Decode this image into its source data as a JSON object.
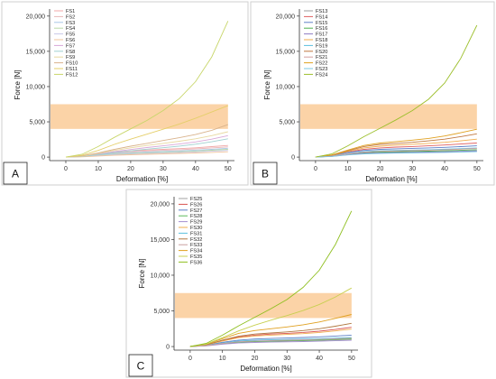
{
  "chart_data": [
    {
      "type": "line",
      "panel_label": "A",
      "xlabel": "Deformation [%]",
      "ylabel": "Force [N]",
      "xlim": [
        -5,
        52
      ],
      "ylim": [
        -500,
        21000
      ],
      "xticks": [
        0,
        10,
        20,
        30,
        40,
        50
      ],
      "xtick_labels": [
        "0",
        "10",
        "20",
        "30",
        "40",
        "50"
      ],
      "yticks": [
        0,
        5000,
        10000,
        15000,
        20000
      ],
      "ytick_labels": [
        "0",
        "5,000",
        "10,000",
        "15,000",
        "20,000"
      ],
      "shaded_band": {
        "y": [
          4000,
          7500
        ],
        "color": "#fbd3a7"
      },
      "grid": false,
      "legend_position": "top-left",
      "x": [
        0,
        5,
        10,
        15,
        20,
        25,
        30,
        35,
        40,
        45,
        50
      ],
      "series": [
        {
          "name": "FS1",
          "color": "#f0a8a8",
          "values": [
            0,
            150,
            450,
            700,
            880,
            1000,
            1100,
            1200,
            1320,
            1480,
            1650
          ]
        },
        {
          "name": "FS2",
          "color": "#e9b8b8",
          "values": [
            0,
            120,
            380,
            600,
            760,
            870,
            960,
            1050,
            1160,
            1300,
            1450
          ]
        },
        {
          "name": "FS3",
          "color": "#a9c8e8",
          "values": [
            0,
            100,
            300,
            480,
            620,
            720,
            800,
            880,
            980,
            1100,
            1250
          ]
        },
        {
          "name": "FS4",
          "color": "#b8d8a8",
          "values": [
            0,
            80,
            250,
            400,
            520,
            610,
            690,
            770,
            860,
            970,
            1100
          ]
        },
        {
          "name": "FS5",
          "color": "#c9c9e8",
          "values": [
            0,
            60,
            200,
            330,
            430,
            510,
            580,
            650,
            730,
            830,
            950
          ]
        },
        {
          "name": "FS6",
          "color": "#f2c49b",
          "values": [
            0,
            40,
            150,
            250,
            330,
            400,
            460,
            520,
            590,
            670,
            760
          ]
        },
        {
          "name": "FS7",
          "color": "#d8a8d8",
          "values": [
            0,
            110,
            420,
            780,
            1080,
            1350,
            1600,
            1850,
            2150,
            2550,
            3050
          ]
        },
        {
          "name": "FS8",
          "color": "#9fd0d0",
          "values": [
            0,
            90,
            350,
            650,
            900,
            1120,
            1330,
            1560,
            1830,
            2180,
            2600
          ]
        },
        {
          "name": "FS9",
          "color": "#e8d8a0",
          "values": [
            0,
            140,
            520,
            950,
            1320,
            1650,
            1950,
            2250,
            2600,
            3050,
            3600
          ]
        },
        {
          "name": "FS10",
          "color": "#d9b38c",
          "values": [
            0,
            180,
            600,
            1100,
            1550,
            1950,
            2350,
            2750,
            3200,
            3800,
            4600
          ]
        },
        {
          "name": "FS11",
          "color": "#e5cf6a",
          "values": [
            0,
            260,
            950,
            1800,
            2550,
            3250,
            3950,
            4700,
            5500,
            6400,
            7300
          ]
        },
        {
          "name": "FS12",
          "color": "#c8d66a",
          "values": [
            0,
            400,
            1500,
            2800,
            4000,
            5200,
            6600,
            8300,
            10700,
            14200,
            19300
          ]
        }
      ]
    },
    {
      "type": "line",
      "panel_label": "B",
      "xlabel": "Deformation [%]",
      "ylabel": "Force [N]",
      "xlim": [
        -5,
        52
      ],
      "ylim": [
        -500,
        21000
      ],
      "xticks": [
        0,
        10,
        20,
        30,
        40,
        50
      ],
      "xtick_labels": [
        "0",
        "10",
        "20",
        "30",
        "40",
        "50"
      ],
      "yticks": [
        0,
        5000,
        10000,
        15000,
        20000
      ],
      "ytick_labels": [
        "0",
        "5,000",
        "10,000",
        "15,000",
        "20,000"
      ],
      "shaded_band": {
        "y": [
          4000,
          7500
        ],
        "color": "#fbd3a7"
      },
      "grid": false,
      "legend_position": "top-left",
      "x": [
        0,
        5,
        10,
        15,
        20,
        25,
        30,
        35,
        40,
        45,
        50
      ],
      "series": [
        {
          "name": "FS13",
          "color": "#9e9e9e",
          "values": [
            0,
            150,
            420,
            560,
            620,
            650,
            680,
            700,
            730,
            760,
            800
          ]
        },
        {
          "name": "FS14",
          "color": "#e06060",
          "values": [
            0,
            200,
            700,
            1100,
            1300,
            1420,
            1500,
            1600,
            1720,
            1850,
            2000
          ]
        },
        {
          "name": "FS15",
          "color": "#6080c8",
          "values": [
            0,
            180,
            650,
            950,
            1100,
            1180,
            1240,
            1300,
            1380,
            1480,
            1600
          ]
        },
        {
          "name": "FS16",
          "color": "#4caf50",
          "values": [
            0,
            120,
            400,
            600,
            700,
            760,
            800,
            850,
            900,
            960,
            1050
          ]
        },
        {
          "name": "FS17",
          "color": "#8e7cc3",
          "values": [
            0,
            100,
            350,
            520,
            600,
            640,
            680,
            720,
            760,
            820,
            900
          ]
        },
        {
          "name": "FS18",
          "color": "#f0ad4e",
          "values": [
            0,
            220,
            800,
            1300,
            1550,
            1700,
            1820,
            1950,
            2100,
            2300,
            2550
          ]
        },
        {
          "name": "FS19",
          "color": "#5bc0de",
          "values": [
            0,
            150,
            500,
            780,
            900,
            960,
            1000,
            1050,
            1120,
            1200,
            1300
          ]
        },
        {
          "name": "FS20",
          "color": "#c07840",
          "values": [
            0,
            250,
            900,
            1500,
            1800,
            1950,
            2100,
            2300,
            2550,
            2900,
            3300
          ]
        },
        {
          "name": "FS21",
          "color": "#d4a0a0",
          "values": [
            0,
            130,
            450,
            700,
            820,
            880,
            930,
            980,
            1050,
            1130,
            1230
          ]
        },
        {
          "name": "FS22",
          "color": "#e0a020",
          "values": [
            0,
            300,
            1000,
            1650,
            2000,
            2200,
            2400,
            2650,
            3000,
            3450,
            3950
          ]
        },
        {
          "name": "FS23",
          "color": "#7ec8e3",
          "values": [
            0,
            90,
            300,
            450,
            520,
            560,
            590,
            620,
            660,
            710,
            780
          ]
        },
        {
          "name": "FS24",
          "color": "#9cbf2b",
          "values": [
            0,
            450,
            1600,
            2900,
            4100,
            5300,
            6600,
            8200,
            10500,
            14000,
            18700
          ]
        }
      ]
    },
    {
      "type": "line",
      "panel_label": "C",
      "xlabel": "Deformation [%]",
      "ylabel": "Force [N]",
      "xlim": [
        -5,
        52
      ],
      "ylim": [
        -500,
        21000
      ],
      "xticks": [
        0,
        10,
        20,
        30,
        40,
        50
      ],
      "xtick_labels": [
        "0",
        "10",
        "20",
        "30",
        "40",
        "50"
      ],
      "yticks": [
        0,
        5000,
        10000,
        15000,
        20000
      ],
      "ytick_labels": [
        "0",
        "5,000",
        "10,000",
        "15,000",
        "20,000"
      ],
      "shaded_band": {
        "y": [
          4000,
          7500
        ],
        "color": "#fbd3a7"
      },
      "grid": false,
      "legend_position": "top-left",
      "x": [
        0,
        5,
        10,
        15,
        20,
        25,
        30,
        35,
        40,
        45,
        50
      ],
      "series": [
        {
          "name": "FS25",
          "color": "#a0a0a0",
          "values": [
            0,
            140,
            450,
            620,
            700,
            740,
            780,
            820,
            870,
            930,
            1000
          ]
        },
        {
          "name": "FS26",
          "color": "#d9534f",
          "values": [
            0,
            250,
            850,
            1350,
            1600,
            1750,
            1850,
            1980,
            2150,
            2400,
            2700
          ]
        },
        {
          "name": "FS27",
          "color": "#5b7fc7",
          "values": [
            0,
            180,
            600,
            900,
            1050,
            1130,
            1200,
            1270,
            1360,
            1470,
            1600
          ]
        },
        {
          "name": "FS28",
          "color": "#5cb85c",
          "values": [
            0,
            120,
            400,
            600,
            700,
            750,
            800,
            850,
            910,
            990,
            1080
          ]
        },
        {
          "name": "FS29",
          "color": "#a58fd0",
          "values": [
            0,
            100,
            330,
            500,
            580,
            620,
            660,
            700,
            750,
            810,
            880
          ]
        },
        {
          "name": "FS30",
          "color": "#f0ad4e",
          "values": [
            0,
            230,
            780,
            1250,
            1480,
            1600,
            1700,
            1820,
            1980,
            2200,
            2450
          ]
        },
        {
          "name": "FS31",
          "color": "#5bc0de",
          "values": [
            0,
            150,
            500,
            760,
            880,
            940,
            990,
            1040,
            1100,
            1180,
            1280
          ]
        },
        {
          "name": "FS32",
          "color": "#b07840",
          "values": [
            0,
            260,
            900,
            1450,
            1750,
            1900,
            2050,
            2250,
            2500,
            2850,
            3250
          ]
        },
        {
          "name": "FS33",
          "color": "#c9a0a0",
          "values": [
            0,
            130,
            430,
            670,
            780,
            840,
            890,
            940,
            1000,
            1080,
            1180
          ]
        },
        {
          "name": "FS34",
          "color": "#e0a020",
          "values": [
            0,
            320,
            1100,
            1850,
            2250,
            2500,
            2750,
            3050,
            3450,
            3950,
            4500
          ]
        },
        {
          "name": "FS35",
          "color": "#c8d050",
          "values": [
            0,
            350,
            1250,
            2200,
            3000,
            3700,
            4350,
            5050,
            5900,
            6950,
            8200
          ]
        },
        {
          "name": "FS36",
          "color": "#8fbf20",
          "values": [
            0,
            450,
            1600,
            2900,
            4100,
            5300,
            6600,
            8300,
            10700,
            14300,
            19000
          ]
        }
      ]
    }
  ]
}
